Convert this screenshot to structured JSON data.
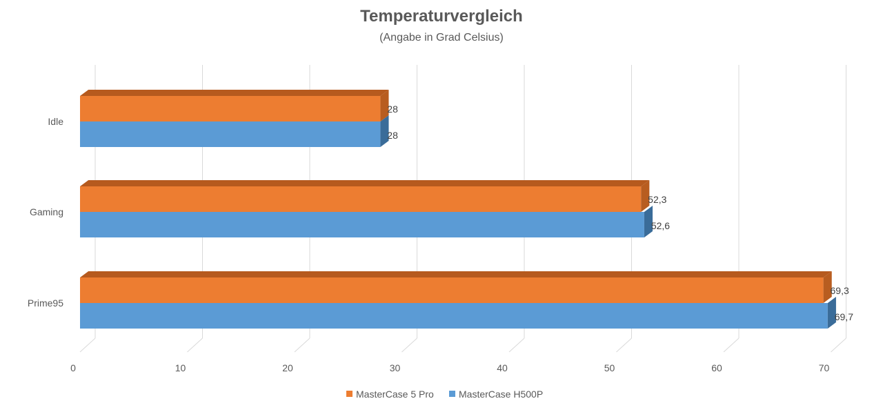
{
  "chart_data": {
    "type": "bar",
    "orientation": "horizontal",
    "style": "3d-clustered-bar",
    "title": "Temperaturvergleich",
    "subtitle": "(Angabe in Grad Celsius)",
    "categories": [
      "Idle",
      "Gaming",
      "Prime95"
    ],
    "series": [
      {
        "name": "MasterCase 5 Pro",
        "values": [
          28,
          52.3,
          69.3
        ],
        "labels": [
          "28",
          "52,3",
          "69,3"
        ],
        "color": "#ED7D31",
        "top_color": "#B65A1E",
        "side_color": "#B85D20"
      },
      {
        "name": "MasterCase H500P",
        "values": [
          28,
          52.6,
          69.7
        ],
        "labels": [
          "28",
          "52,6",
          "69,7"
        ],
        "color": "#5B9BD5",
        "top_color": "#41719C",
        "side_color": "#3A6C99"
      }
    ],
    "x_ticks": [
      "0",
      "10",
      "20",
      "30",
      "40",
      "50",
      "60",
      "70"
    ],
    "xlim": [
      0,
      70
    ],
    "grid": true,
    "legend": "bottom",
    "grid_color": "#D9D9D9"
  }
}
